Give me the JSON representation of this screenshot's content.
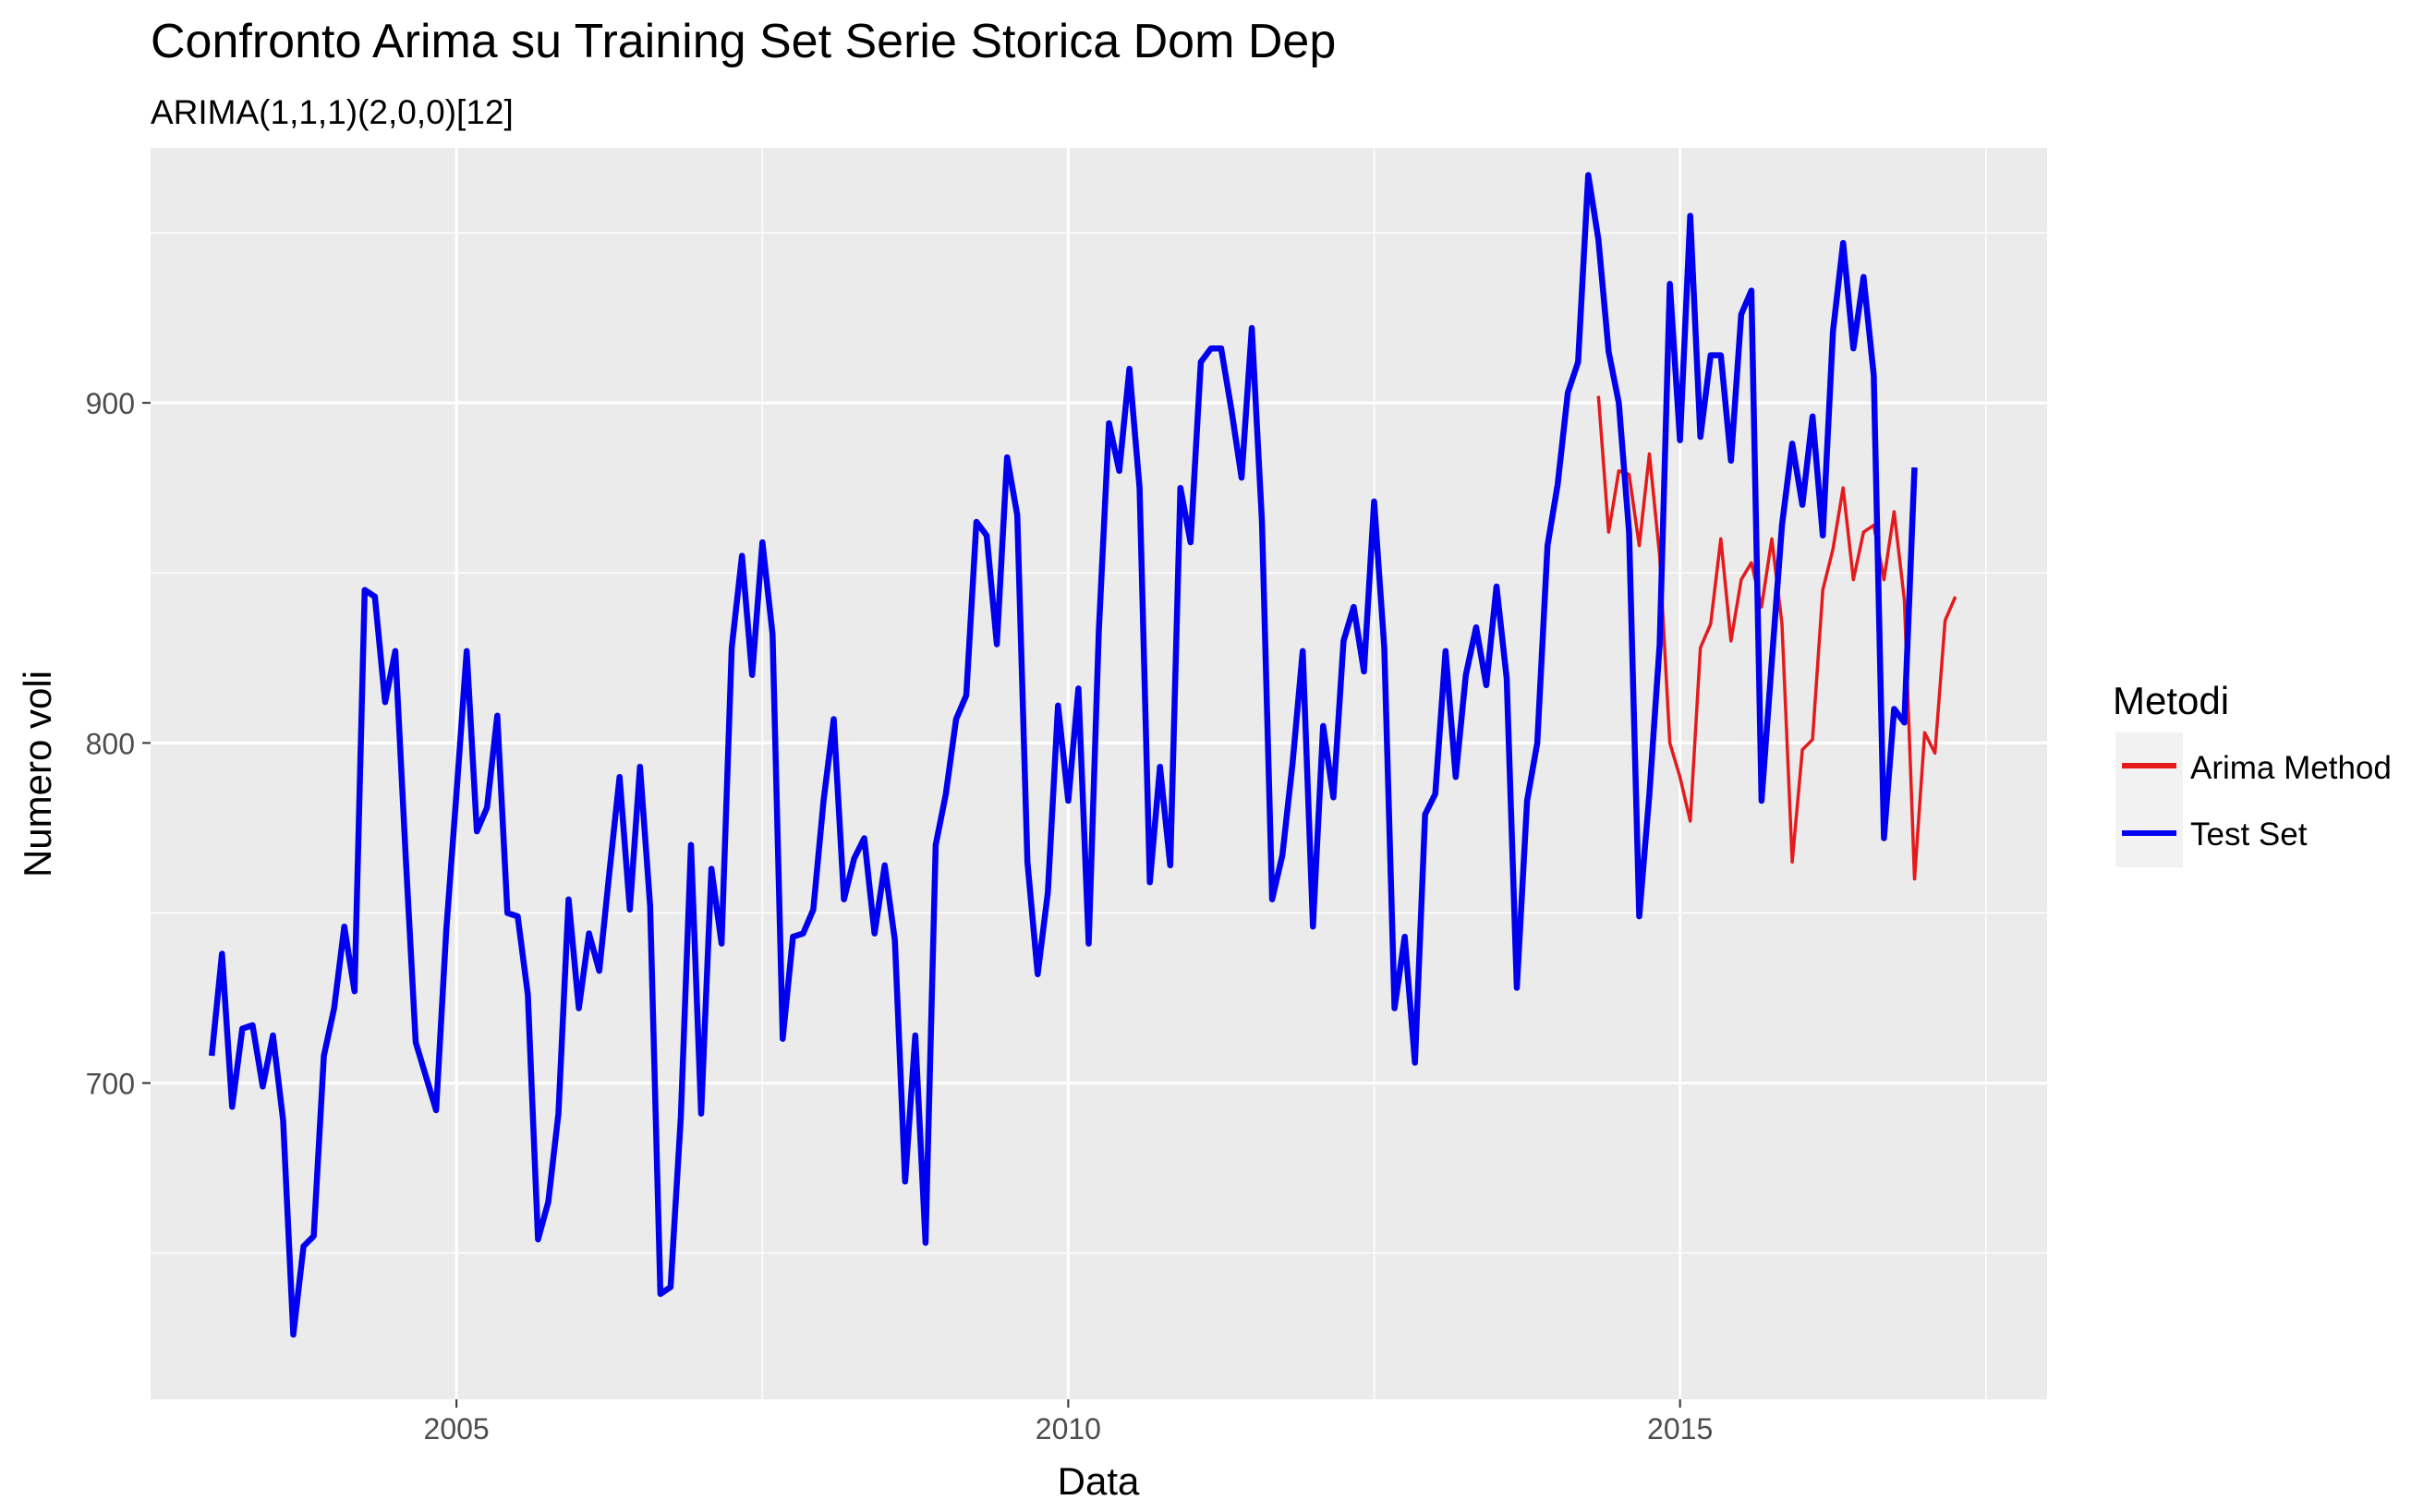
{
  "chart_data": {
    "type": "line",
    "title": "Confronto Arima su Training Set Serie Storica Dom Dep",
    "subtitle": "ARIMA(1,1,1)(2,0,0)[12]",
    "xlabel": "Data",
    "ylabel": "Numero voli",
    "xlim": [
      2002.5,
      2018.0
    ],
    "ylim": [
      607,
      975
    ],
    "x_ticks": [
      2005,
      2010,
      2015
    ],
    "y_ticks": [
      700,
      800,
      900
    ],
    "grid": true,
    "legend": {
      "title": "Metodi",
      "position": "right"
    },
    "series": [
      {
        "name": "Arima Method",
        "color": "#e41a1c",
        "x_start": 2014.3333,
        "x_step": 0.083333,
        "values": [
          902,
          862,
          880,
          879,
          858,
          885,
          855,
          800,
          790,
          777,
          828,
          835,
          860,
          830,
          848,
          853,
          840,
          860,
          835,
          765,
          798,
          801,
          845,
          857,
          875,
          848,
          862,
          864,
          848,
          868,
          842,
          760,
          803,
          797,
          836,
          843
        ]
      },
      {
        "name": "Test Set",
        "color": "#0000ee",
        "x_start": 2003.0,
        "x_step": 0.083333,
        "values": [
          708,
          738,
          693,
          716,
          717,
          699,
          714,
          689,
          626,
          652,
          655,
          708,
          722,
          746,
          727,
          845,
          843,
          812,
          827,
          768,
          712,
          702,
          692,
          745,
          785,
          827,
          774,
          781,
          808,
          750,
          749,
          726,
          654,
          665,
          691,
          754,
          722,
          744,
          733,
          762,
          790,
          751,
          793,
          752,
          638,
          640,
          690,
          770,
          691,
          763,
          741,
          828,
          855,
          820,
          859,
          832,
          713,
          743,
          744,
          751,
          783,
          807,
          754,
          766,
          772,
          744,
          764,
          742,
          671,
          714,
          653,
          770,
          785,
          807,
          814,
          865,
          861,
          829,
          884,
          867,
          765,
          732,
          756,
          811,
          783,
          816,
          741,
          833,
          894,
          880,
          910,
          875,
          759,
          793,
          764,
          875,
          859,
          912,
          916,
          916,
          898,
          878,
          922,
          865,
          754,
          767,
          794,
          827,
          746,
          805,
          784,
          830,
          840,
          821,
          871,
          828,
          722,
          743,
          706,
          779,
          785,
          827,
          790,
          820,
          834,
          817,
          846,
          819,
          728,
          783,
          800,
          858,
          876,
          903,
          912,
          967,
          948,
          915,
          900,
          862,
          749,
          785,
          829,
          935,
          889,
          955,
          890,
          914,
          914,
          883,
          926,
          933,
          783,
          824,
          864,
          888,
          870,
          896,
          861,
          921,
          947,
          916,
          937,
          908,
          772,
          810,
          806,
          881
        ]
      }
    ]
  }
}
